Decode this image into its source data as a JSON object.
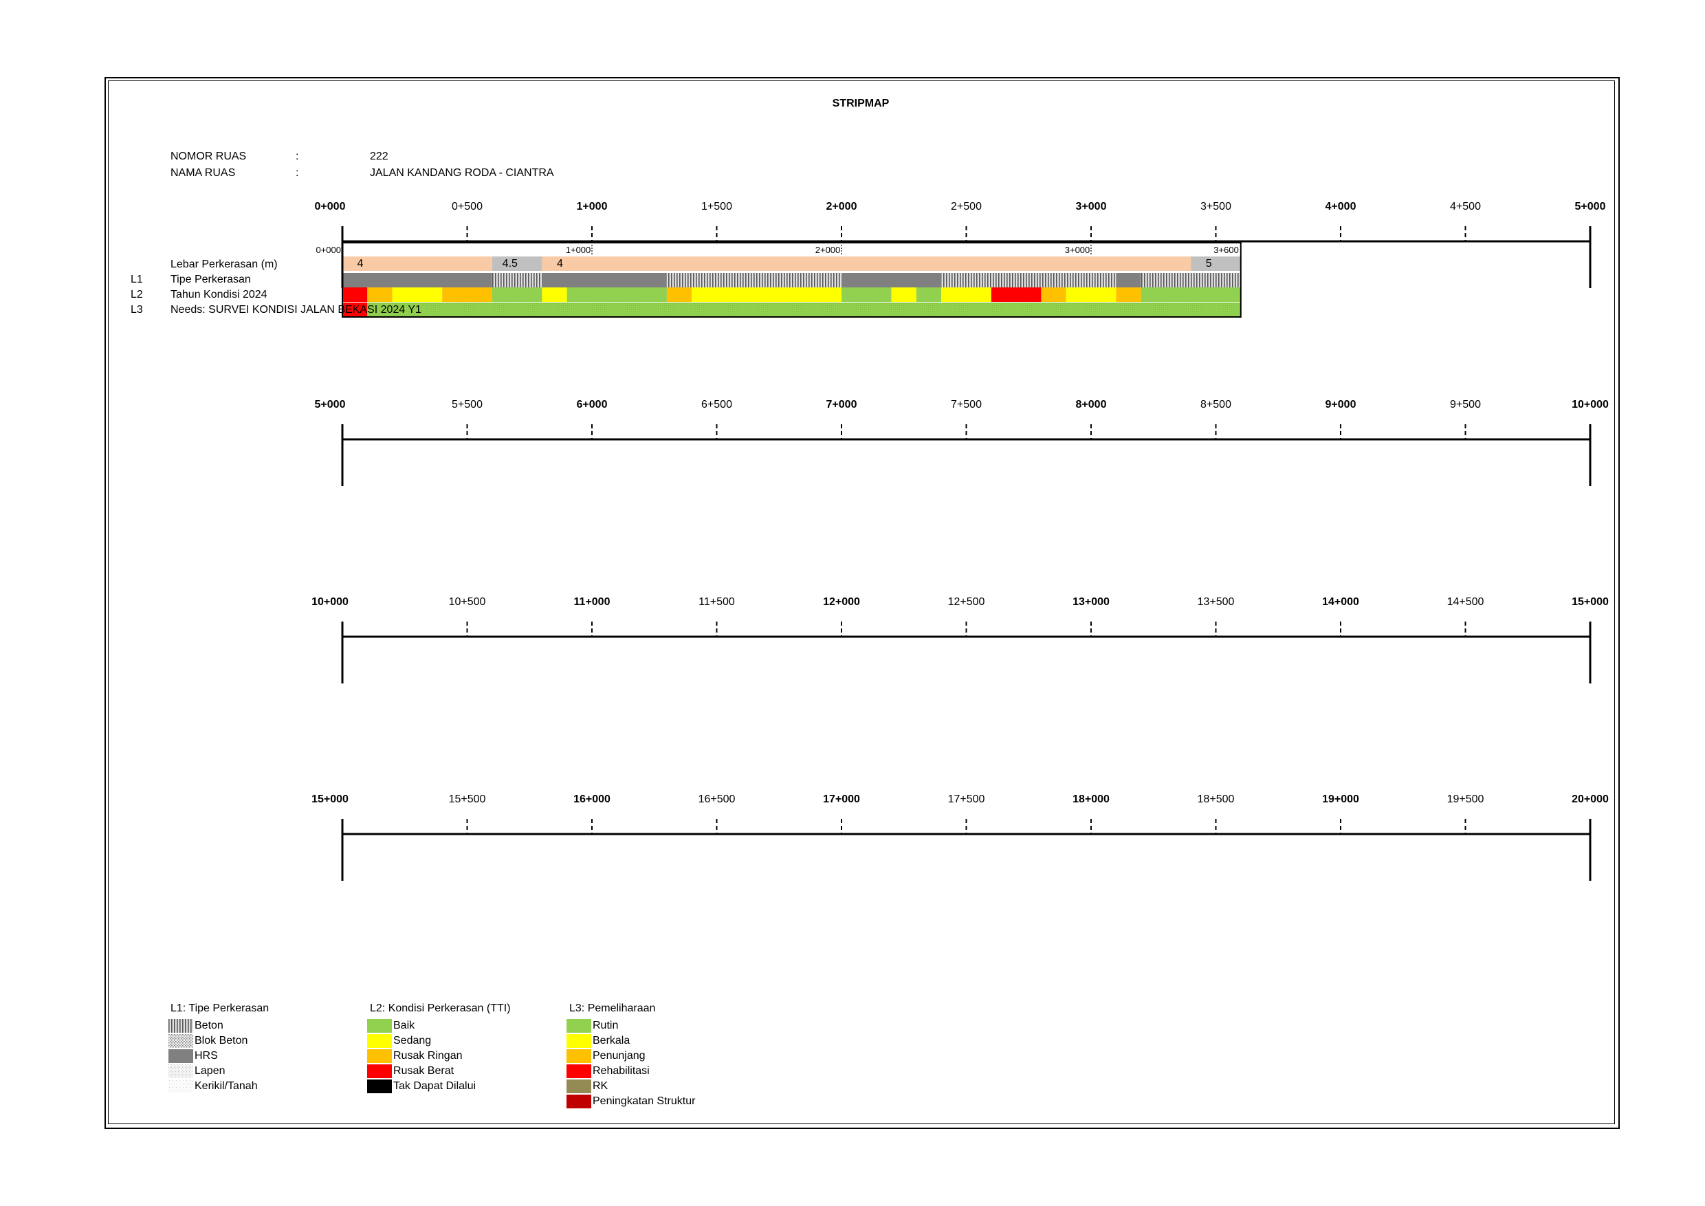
{
  "title": "STRIPMAP",
  "header": {
    "nomor_label": "NOMOR RUAS",
    "nomor_sep": ":",
    "nomor_value": "222",
    "nama_label": "NAMA RUAS",
    "nama_sep": ":",
    "nama_value": "JALAN KANDANG RODA - CIANTRA"
  },
  "rows": [
    {
      "code": "",
      "label": "Lebar Perkerasan (m)"
    },
    {
      "code": "L1",
      "label": "Tipe Perkerasan"
    },
    {
      "code": "L2",
      "label": "Tahun Kondisi 2024"
    },
    {
      "code": "L3",
      "label": "Needs: SURVEI KONDISI JALAN BEKASI 2024 Y1"
    }
  ],
  "strips": [
    {
      "ticks": [
        {
          "label": "0+000",
          "major": true
        },
        {
          "label": "0+500",
          "major": false
        },
        {
          "label": "1+000",
          "major": true
        },
        {
          "label": "1+500",
          "major": false
        },
        {
          "label": "2+000",
          "major": true
        },
        {
          "label": "2+500",
          "major": false
        },
        {
          "label": "3+000",
          "major": true
        },
        {
          "label": "3+500",
          "major": false
        },
        {
          "label": "4+000",
          "major": true
        },
        {
          "label": "4+500",
          "major": false
        },
        {
          "label": "5+000",
          "major": true
        }
      ]
    },
    {
      "ticks": [
        {
          "label": "5+000",
          "major": true
        },
        {
          "label": "5+500",
          "major": false
        },
        {
          "label": "6+000",
          "major": true
        },
        {
          "label": "6+500",
          "major": false
        },
        {
          "label": "7+000",
          "major": true
        },
        {
          "label": "7+500",
          "major": false
        },
        {
          "label": "8+000",
          "major": true
        },
        {
          "label": "8+500",
          "major": false
        },
        {
          "label": "9+000",
          "major": true
        },
        {
          "label": "9+500",
          "major": false
        },
        {
          "label": "10+000",
          "major": true
        }
      ]
    },
    {
      "ticks": [
        {
          "label": "10+000",
          "major": true
        },
        {
          "label": "10+500",
          "major": false
        },
        {
          "label": "11+000",
          "major": true
        },
        {
          "label": "11+500",
          "major": false
        },
        {
          "label": "12+000",
          "major": true
        },
        {
          "label": "12+500",
          "major": false
        },
        {
          "label": "13+000",
          "major": true
        },
        {
          "label": "13+500",
          "major": false
        },
        {
          "label": "14+000",
          "major": true
        },
        {
          "label": "14+500",
          "major": false
        },
        {
          "label": "15+000",
          "major": true
        }
      ]
    },
    {
      "ticks": [
        {
          "label": "15+000",
          "major": true
        },
        {
          "label": "15+500",
          "major": false
        },
        {
          "label": "16+000",
          "major": true
        },
        {
          "label": "16+500",
          "major": false
        },
        {
          "label": "17+000",
          "major": true
        },
        {
          "label": "17+500",
          "major": false
        },
        {
          "label": "18+000",
          "major": true
        },
        {
          "label": "18+500",
          "major": false
        },
        {
          "label": "19+000",
          "major": true
        },
        {
          "label": "19+500",
          "major": false
        },
        {
          "label": "20+000",
          "major": true
        }
      ]
    }
  ],
  "segment_markers": [
    {
      "km": 0,
      "label": "0+000"
    },
    {
      "km": 1,
      "label": "1+000"
    },
    {
      "km": 2,
      "label": "2+000"
    },
    {
      "km": 3,
      "label": "3+000"
    },
    {
      "km": 3.6,
      "label": "3+600"
    }
  ],
  "road_end_km": 3.6,
  "width_segments": [
    {
      "from": 0,
      "to": 0.6,
      "value": "4",
      "color": "#f8cba6"
    },
    {
      "from": 0.6,
      "to": 0.8,
      "value": "4.5",
      "color": "#c0c0c0"
    },
    {
      "from": 0.8,
      "to": 3.4,
      "value": "4",
      "color": "#f8cba6"
    },
    {
      "from": 3.4,
      "to": 3.6,
      "value": "5",
      "color": "#c0c0c0"
    }
  ],
  "pavement_segments": [
    {
      "from": 0,
      "to": 0.6,
      "type": "HRS"
    },
    {
      "from": 0.6,
      "to": 0.8,
      "type": "Beton"
    },
    {
      "from": 0.8,
      "to": 1.3,
      "type": "HRS"
    },
    {
      "from": 1.3,
      "to": 2.0,
      "type": "Beton"
    },
    {
      "from": 2.0,
      "to": 2.4,
      "type": "HRS"
    },
    {
      "from": 2.4,
      "to": 3.1,
      "type": "Beton"
    },
    {
      "from": 3.1,
      "to": 3.2,
      "type": "HRS"
    },
    {
      "from": 3.2,
      "to": 3.6,
      "type": "Beton"
    }
  ],
  "condition_segments": [
    {
      "from": 0,
      "to": 0.1,
      "cond": "Rusak Berat"
    },
    {
      "from": 0.1,
      "to": 0.2,
      "cond": "Rusak Ringan"
    },
    {
      "from": 0.2,
      "to": 0.4,
      "cond": "Sedang"
    },
    {
      "from": 0.4,
      "to": 0.6,
      "cond": "Rusak Ringan"
    },
    {
      "from": 0.6,
      "to": 0.8,
      "cond": "Baik"
    },
    {
      "from": 0.8,
      "to": 0.9,
      "cond": "Sedang"
    },
    {
      "from": 0.9,
      "to": 1.3,
      "cond": "Baik"
    },
    {
      "from": 1.3,
      "to": 1.4,
      "cond": "Rusak Ringan"
    },
    {
      "from": 1.4,
      "to": 2.0,
      "cond": "Sedang"
    },
    {
      "from": 2.0,
      "to": 2.2,
      "cond": "Baik"
    },
    {
      "from": 2.2,
      "to": 2.3,
      "cond": "Sedang"
    },
    {
      "from": 2.3,
      "to": 2.4,
      "cond": "Baik"
    },
    {
      "from": 2.4,
      "to": 2.6,
      "cond": "Sedang"
    },
    {
      "from": 2.6,
      "to": 2.8,
      "cond": "Rusak Berat"
    },
    {
      "from": 2.8,
      "to": 2.9,
      "cond": "Rusak Ringan"
    },
    {
      "from": 2.9,
      "to": 3.1,
      "cond": "Sedang"
    },
    {
      "from": 3.1,
      "to": 3.2,
      "cond": "Rusak Ringan"
    },
    {
      "from": 3.2,
      "to": 3.6,
      "cond": "Baik"
    }
  ],
  "needs_segments": [
    {
      "from": 0,
      "to": 0.1,
      "need": "Rehabilitasi"
    },
    {
      "from": 0.1,
      "to": 3.6,
      "need": "Rutin"
    }
  ],
  "legend": {
    "l1": {
      "title": "L1: Tipe Perkerasan",
      "items": [
        {
          "label": "Beton",
          "pattern": "beton"
        },
        {
          "label": "Blok Beton",
          "pattern": "blok"
        },
        {
          "label": "HRS",
          "pattern": "hrs"
        },
        {
          "label": "Lapen",
          "pattern": "lapen"
        },
        {
          "label": "Kerikil/Tanah",
          "pattern": "kerikil"
        }
      ]
    },
    "l2": {
      "title": "L2: Kondisi Perkerasan (TTI)",
      "items": [
        {
          "label": "Baik",
          "color": "#92d050"
        },
        {
          "label": "Sedang",
          "color": "#ffff00"
        },
        {
          "label": "Rusak Ringan",
          "color": "#ffc000"
        },
        {
          "label": "Rusak Berat",
          "color": "#ff0000"
        },
        {
          "label": "Tak Dapat Dilalui",
          "color": "#000000"
        }
      ]
    },
    "l3": {
      "title": "L3: Pemeliharaan",
      "items": [
        {
          "label": "Rutin",
          "color": "#92d050"
        },
        {
          "label": "Berkala",
          "color": "#ffff00"
        },
        {
          "label": "Penunjang",
          "color": "#ffc000"
        },
        {
          "label": "Rehabilitasi",
          "color": "#ff0000"
        },
        {
          "label": "RK",
          "color": "#948a54"
        },
        {
          "label": "Peningkatan Struktur",
          "color": "#c00000"
        }
      ]
    }
  }
}
